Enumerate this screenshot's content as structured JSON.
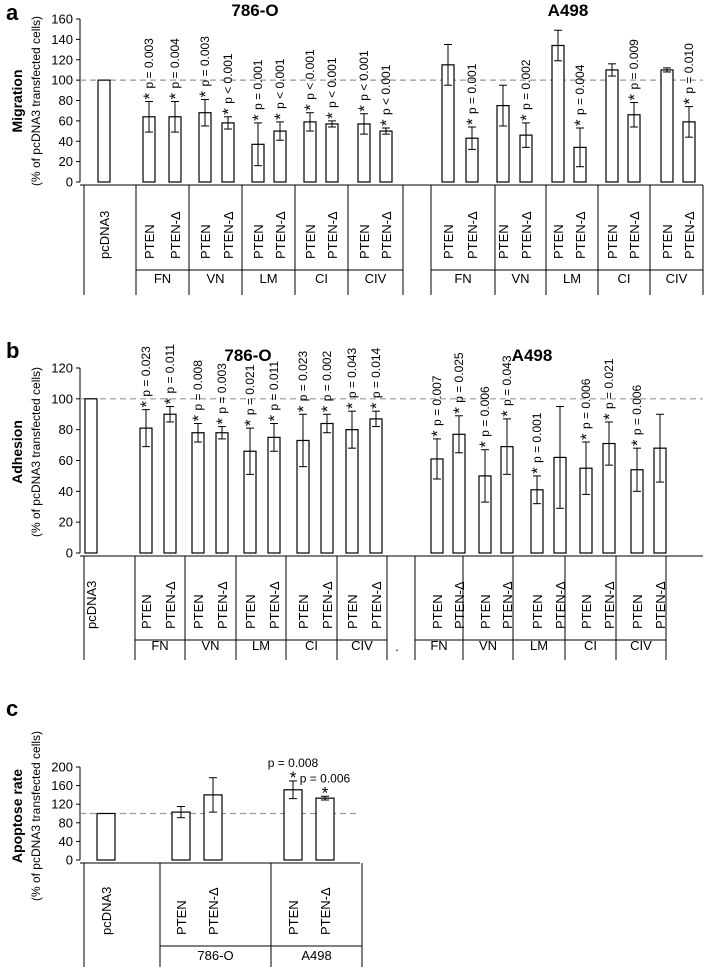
{
  "chart_data": [
    {
      "panel": "a",
      "type": "bar",
      "ylabel": "Migration",
      "ylabel_sub": "(% of pcDNA3 transfected cells)",
      "ylim": [
        0,
        160
      ],
      "yticks": [
        0,
        20,
        40,
        60,
        80,
        100,
        120,
        140,
        160
      ],
      "reference_line": 100,
      "cell_lines": [
        "786-O",
        "A498"
      ],
      "groups": [
        {
          "label": "pcDNA3",
          "bars": [
            {
              "label": "pcDNA3",
              "value": 100,
              "err": 0,
              "sig": ""
            }
          ]
        },
        {
          "label": "FN",
          "bars": [
            {
              "label": "PTEN",
              "value": 64,
              "err": 15,
              "sig": "p = 0.003"
            },
            {
              "label": "PTEN-Δ",
              "value": 64,
              "err": 15,
              "sig": "p = 0.004"
            }
          ]
        },
        {
          "label": "VN",
          "bars": [
            {
              "label": "PTEN",
              "value": 68,
              "err": 13,
              "sig": "p = 0.003"
            },
            {
              "label": "PTEN-Δ",
              "value": 58,
              "err": 6,
              "sig": "p < 0.001"
            }
          ]
        },
        {
          "label": "LM",
          "bars": [
            {
              "label": "PTEN",
              "value": 37,
              "err": 21,
              "sig": "p = 0.001"
            },
            {
              "label": "PTEN-Δ",
              "value": 50,
              "err": 9,
              "sig": "p < 0.001"
            }
          ]
        },
        {
          "label": "CI",
          "bars": [
            {
              "label": "PTEN",
              "value": 59,
              "err": 9,
              "sig": "p < 0.001"
            },
            {
              "label": "PTEN-Δ",
              "value": 57,
              "err": 3,
              "sig": "p < 0.001"
            }
          ]
        },
        {
          "label": "CIV",
          "bars": [
            {
              "label": "PTEN",
              "value": 57,
              "err": 10,
              "sig": "p < 0.001"
            },
            {
              "label": "PTEN-Δ",
              "value": 50,
              "err": 3,
              "sig": "p < 0.001"
            }
          ]
        },
        {
          "label": "FN",
          "bars": [
            {
              "label": "PTEN",
              "value": 115,
              "err": 20,
              "sig": ""
            },
            {
              "label": "PTEN-Δ",
              "value": 43,
              "err": 11,
              "sig": "p = 0.001"
            }
          ]
        },
        {
          "label": "VN",
          "bars": [
            {
              "label": "PTEN",
              "value": 75,
              "err": 20,
              "sig": ""
            },
            {
              "label": "PTEN-Δ",
              "value": 46,
              "err": 12,
              "sig": "p = 0.002"
            }
          ]
        },
        {
          "label": "LM",
          "bars": [
            {
              "label": "PTEN",
              "value": 134,
              "err": 15,
              "sig": ""
            },
            {
              "label": "PTEN-Δ",
              "value": 34,
              "err": 19,
              "sig": "p = 0.004"
            }
          ]
        },
        {
          "label": "CI",
          "bars": [
            {
              "label": "PTEN",
              "value": 110,
              "err": 6,
              "sig": ""
            },
            {
              "label": "PTEN-Δ",
              "value": 66,
              "err": 12,
              "sig": "p = 0.009"
            }
          ]
        },
        {
          "label": "CIV",
          "bars": [
            {
              "label": "PTEN",
              "value": 110,
              "err": 2,
              "sig": ""
            },
            {
              "label": "PTEN-Δ",
              "value": 59,
              "err": 15,
              "sig": "p = 0.010"
            }
          ]
        }
      ]
    },
    {
      "panel": "b",
      "type": "bar",
      "ylabel": "Adhesion",
      "ylabel_sub": "(% of pcDNA3 transfected cells)",
      "ylim": [
        0,
        120
      ],
      "yticks": [
        0,
        20,
        40,
        60,
        80,
        100,
        120
      ],
      "reference_line": 100,
      "cell_lines": [
        "786-O",
        "A498"
      ],
      "separator": ".",
      "groups": [
        {
          "label": "pcDNA3",
          "bars": [
            {
              "label": "pcDNA3",
              "value": 100,
              "err": 0,
              "sig": ""
            }
          ]
        },
        {
          "label": "FN",
          "bars": [
            {
              "label": "PTEN",
              "value": 81,
              "err": 12,
              "sig": "p = 0.023"
            },
            {
              "label": "PTEN-Δ",
              "value": 90,
              "err": 5,
              "sig": "p = 0.011"
            }
          ]
        },
        {
          "label": "VN",
          "bars": [
            {
              "label": "PTEN",
              "value": 78,
              "err": 6,
              "sig": "p = 0.008"
            },
            {
              "label": "PTEN-Δ",
              "value": 78,
              "err": 4,
              "sig": "p = 0.003"
            }
          ]
        },
        {
          "label": "LM",
          "bars": [
            {
              "label": "PTEN",
              "value": 66,
              "err": 15,
              "sig": "p = 0.021"
            },
            {
              "label": "PTEN-Δ",
              "value": 75,
              "err": 9,
              "sig": "p = 0.011"
            }
          ]
        },
        {
          "label": "CI",
          "bars": [
            {
              "label": "PTEN",
              "value": 73,
              "err": 17,
              "sig": "p = 0.023"
            },
            {
              "label": "PTEN-Δ",
              "value": 84,
              "err": 6,
              "sig": "p = 0.002"
            }
          ]
        },
        {
          "label": "CIV",
          "bars": [
            {
              "label": "PTEN",
              "value": 80,
              "err": 12,
              "sig": "p = 0.043"
            },
            {
              "label": "PTEN-Δ",
              "value": 87,
              "err": 5,
              "sig": "p = 0.014"
            }
          ]
        },
        {
          "label": "FN",
          "bars": [
            {
              "label": "PTEN",
              "value": 61,
              "err": 13,
              "sig": "p = 0.007"
            },
            {
              "label": "PTEN-Δ",
              "value": 77,
              "err": 12,
              "sig": "p = 0.025"
            }
          ]
        },
        {
          "label": "VN",
          "bars": [
            {
              "label": "PTEN",
              "value": 50,
              "err": 17,
              "sig": "p = 0.006"
            },
            {
              "label": "PTEN-Δ",
              "value": 69,
              "err": 18,
              "sig": "p = 0.043"
            }
          ]
        },
        {
          "label": "LM",
          "bars": [
            {
              "label": "PTEN",
              "value": 41,
              "err": 9,
              "sig": "p = 0.001"
            },
            {
              "label": "PTEN-Δ",
              "value": 62,
              "err": 33,
              "sig": ""
            }
          ]
        },
        {
          "label": "CI",
          "bars": [
            {
              "label": "PTEN",
              "value": 55,
              "err": 17,
              "sig": "p = 0.006"
            },
            {
              "label": "PTEN-Δ",
              "value": 71,
              "err": 14,
              "sig": "p = 0.021"
            }
          ]
        },
        {
          "label": "CIV",
          "bars": [
            {
              "label": "PTEN",
              "value": 54,
              "err": 14,
              "sig": "p = 0.006"
            },
            {
              "label": "PTEN-Δ",
              "value": 68,
              "err": 22,
              "sig": ""
            }
          ]
        }
      ]
    },
    {
      "panel": "c",
      "type": "bar",
      "ylabel": "Apoptose rate",
      "ylabel_sub": "(% of pcDNA3 transfected cells)",
      "ylim": [
        0,
        200
      ],
      "yticks": [
        0,
        40,
        80,
        120,
        160,
        200
      ],
      "reference_line": 100,
      "groups": [
        {
          "label": "pcDNA3",
          "bars": [
            {
              "label": "pcDNA3",
              "value": 100,
              "err": 0,
              "sig": ""
            }
          ]
        },
        {
          "label": "786-O",
          "bars": [
            {
              "label": "PTEN",
              "value": 103,
              "err": 12,
              "sig": ""
            },
            {
              "label": "PTEN-Δ",
              "value": 140,
              "err": 37,
              "sig": ""
            }
          ]
        },
        {
          "label": "A498",
          "bars": [
            {
              "label": "PTEN",
              "value": 151,
              "err": 19,
              "sig": "p = 0.008"
            },
            {
              "label": "PTEN-Δ",
              "value": 133,
              "err": 4,
              "sig": "p = 0.006"
            }
          ]
        }
      ]
    }
  ]
}
